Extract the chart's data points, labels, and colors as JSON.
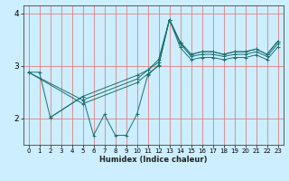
{
  "title": "",
  "xlabel": "Humidex (Indice chaleur)",
  "bg_color": "#cceeff",
  "grid_color": "#e08080",
  "line_color": "#1a7070",
  "xlim": [
    -0.5,
    23.5
  ],
  "ylim": [
    1.5,
    4.15
  ],
  "xticks": [
    0,
    1,
    2,
    3,
    4,
    5,
    6,
    7,
    8,
    9,
    10,
    11,
    12,
    13,
    14,
    15,
    16,
    17,
    18,
    19,
    20,
    21,
    22,
    23
  ],
  "yticks": [
    2,
    3,
    4
  ],
  "series": [
    {
      "x": [
        0,
        1,
        2,
        5,
        10,
        11,
        12,
        13,
        14,
        15,
        16,
        17,
        18,
        19,
        20,
        21,
        22,
        23
      ],
      "y": [
        2.88,
        2.88,
        2.02,
        2.42,
        2.82,
        2.92,
        3.12,
        3.88,
        3.45,
        3.22,
        3.27,
        3.27,
        3.22,
        3.27,
        3.27,
        3.32,
        3.22,
        3.47
      ]
    },
    {
      "x": [
        2,
        5,
        6,
        7,
        8,
        9,
        10,
        11,
        12,
        13,
        14,
        15,
        16,
        17,
        18,
        19,
        20,
        21,
        22,
        23
      ],
      "y": [
        2.02,
        2.42,
        1.68,
        2.08,
        1.68,
        1.68,
        2.08,
        2.82,
        3.02,
        3.88,
        3.45,
        3.22,
        3.27,
        3.27,
        3.22,
        3.27,
        3.27,
        3.32,
        3.22,
        3.47
      ]
    },
    {
      "x": [
        0,
        5,
        10,
        11,
        12,
        13,
        14,
        15,
        16,
        17,
        18,
        19,
        20,
        21,
        22,
        23
      ],
      "y": [
        2.88,
        2.35,
        2.75,
        2.92,
        3.07,
        3.88,
        3.42,
        3.18,
        3.22,
        3.22,
        3.18,
        3.22,
        3.22,
        3.27,
        3.18,
        3.42
      ]
    },
    {
      "x": [
        0,
        5,
        10,
        11,
        12,
        13,
        14,
        15,
        16,
        17,
        18,
        19,
        20,
        21,
        22,
        23
      ],
      "y": [
        2.88,
        2.28,
        2.68,
        2.85,
        3.0,
        3.88,
        3.35,
        3.12,
        3.16,
        3.16,
        3.12,
        3.16,
        3.16,
        3.21,
        3.12,
        3.36
      ]
    }
  ]
}
